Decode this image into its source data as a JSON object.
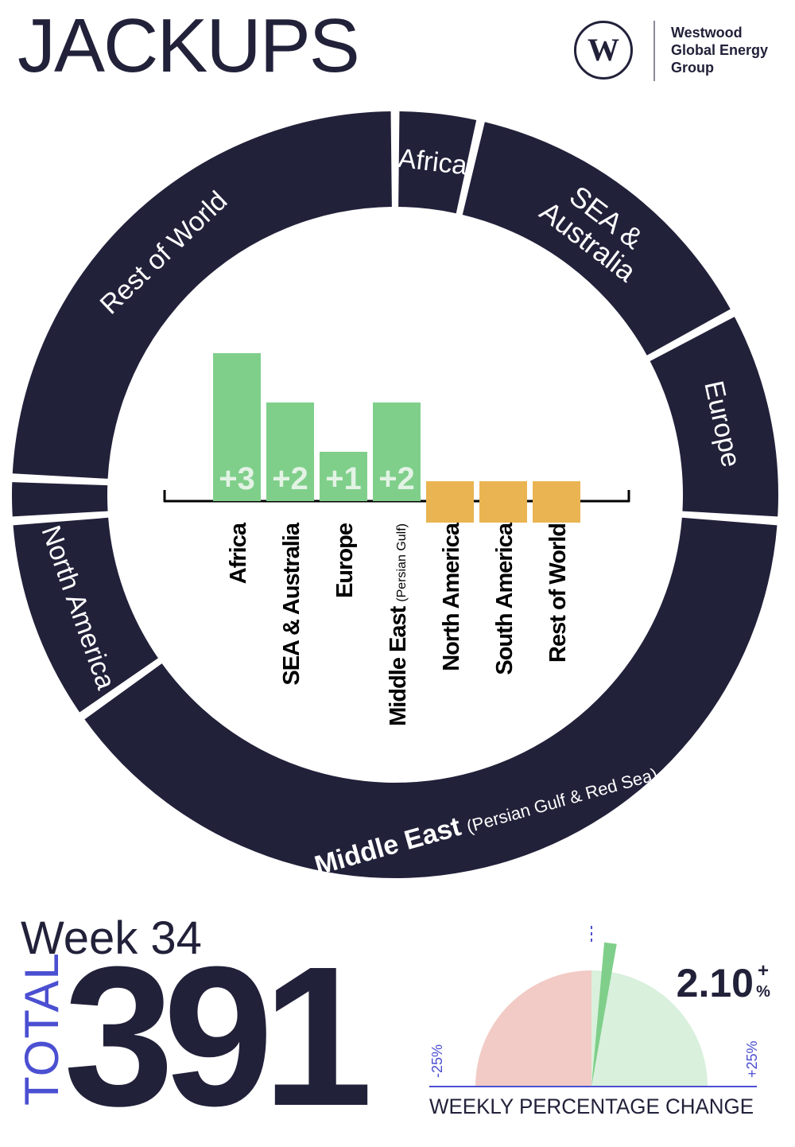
{
  "header": {
    "title": "JACKUPS",
    "logo": {
      "icon": "westwood-w-logo-icon",
      "lines": [
        "Westwood",
        "Global Energy",
        "Group"
      ]
    }
  },
  "summary": {
    "week_label": "Week 34",
    "total_label": "TOTAL",
    "total_value": "391"
  },
  "colors": {
    "dark": "#22213a",
    "positive": "#7fcf8a",
    "negative": "#e9b451",
    "gauge_negative": "#f2cbc6",
    "gauge_positive": "#d9f0dc",
    "accent": "#4b4fd1"
  },
  "chart_data": [
    {
      "type": "pie",
      "style": "donut",
      "categories": [
        "Africa",
        "SEA & Australia",
        "Europe",
        "Middle East (Persian Gulf & Red Sea)",
        "North America",
        "South America",
        "Rest of World"
      ],
      "values": [
        14,
        53,
        35,
        153,
        34,
        7,
        95
      ],
      "labels": [
        {
          "main": "Africa",
          "sub": ""
        },
        {
          "main": "SEA &",
          "sub": "Australia"
        },
        {
          "main": "Europe",
          "sub": ""
        },
        {
          "main": "Middle East",
          "sub": "(Persian Gulf & Red Sea)"
        },
        {
          "main": "North America",
          "sub": ""
        },
        {
          "main": "",
          "sub": ""
        },
        {
          "main": "Rest of World",
          "sub": ""
        }
      ]
    },
    {
      "type": "bar",
      "categories": [
        "Africa",
        "SEA & Australia",
        "Europe",
        "Middle East",
        "North America",
        "South America",
        "Rest of World"
      ],
      "category_notes": [
        "",
        "",
        "",
        "(Persian Gulf)",
        "",
        "",
        ""
      ],
      "values": [
        3,
        2,
        1,
        2,
        0,
        0,
        0
      ],
      "data_labels": [
        "+3",
        "+2",
        "+1",
        "+2",
        "",
        "",
        ""
      ]
    },
    {
      "type": "gauge",
      "title": "WEEKLY PERCENTAGE CHANGE",
      "value": 2.1,
      "value_label": "2.10",
      "value_sign": "+",
      "value_unit": "%",
      "min": -25,
      "max": 25,
      "min_label": "-25%",
      "max_label": "+25%"
    }
  ]
}
